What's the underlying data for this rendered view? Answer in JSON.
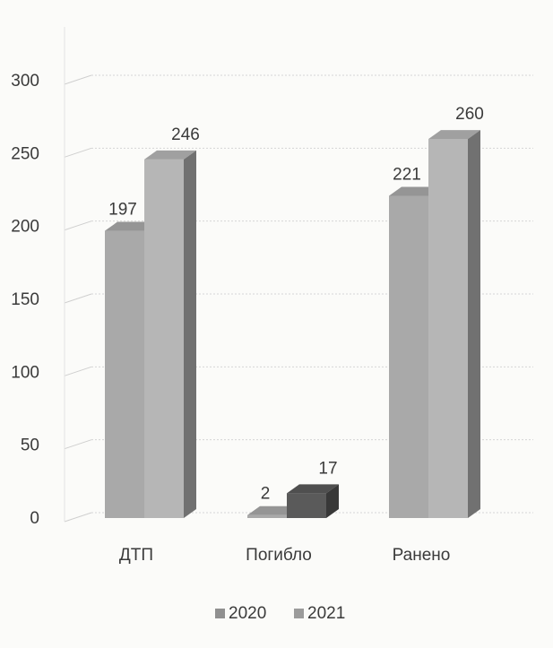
{
  "chart_data": {
    "type": "bar",
    "categories": [
      "ДТП",
      "Погибло",
      "Ранено"
    ],
    "series": [
      {
        "name": "2020",
        "values": [
          197,
          2,
          221
        ]
      },
      {
        "name": "2021",
        "values": [
          246,
          17,
          260
        ]
      }
    ],
    "ylim": [
      0,
      300
    ],
    "yticks": [
      0,
      50,
      100,
      150,
      200,
      250,
      300
    ],
    "grid": true,
    "legend": "bottom",
    "style": "3d-column",
    "colors": {
      "series_2020": "#a9a9a9",
      "series_2021": "#b6b6b6",
      "highlight_2021_pogiblo": "#5a5a5a"
    }
  }
}
